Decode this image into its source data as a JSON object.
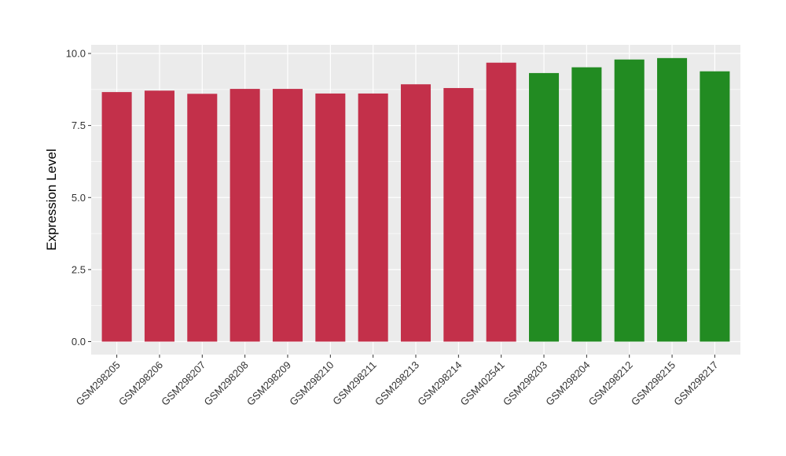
{
  "chart_data": {
    "type": "bar",
    "title": "",
    "xlabel": "",
    "ylabel": "Expression Level",
    "ylim": [
      -0.45,
      10.3
    ],
    "yticks": [
      0.0,
      2.5,
      5.0,
      7.5,
      10.0
    ],
    "ytick_labels": [
      "0.0",
      "2.5",
      "5.0",
      "7.5",
      "10.0"
    ],
    "grid": true,
    "legend": "none",
    "categories": [
      "GSM298205",
      "GSM298206",
      "GSM298207",
      "GSM298208",
      "GSM298209",
      "GSM298210",
      "GSM298211",
      "GSM298213",
      "GSM298214",
      "GSM402541",
      "GSM298203",
      "GSM298204",
      "GSM298212",
      "GSM298215",
      "GSM298217"
    ],
    "values": [
      8.66,
      8.71,
      8.6,
      8.77,
      8.77,
      8.61,
      8.61,
      8.93,
      8.8,
      9.68,
      9.32,
      9.52,
      9.79,
      9.84,
      9.38
    ],
    "groups": [
      "a",
      "a",
      "a",
      "a",
      "a",
      "a",
      "a",
      "a",
      "a",
      "a",
      "b",
      "b",
      "b",
      "b",
      "b"
    ],
    "group_colors": {
      "a": "#C3304A",
      "b": "#228B22"
    },
    "panel_background": "#EBEBEB",
    "grid_color": "#FFFFFF"
  }
}
